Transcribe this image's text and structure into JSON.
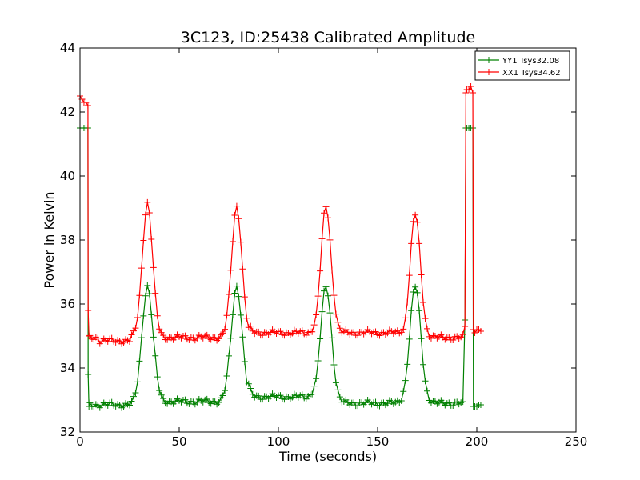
{
  "chart_data": {
    "type": "line",
    "title": "3C123, ID:25438 Calibrated Amplitude",
    "xlabel": "Time (seconds)",
    "ylabel": "Power in Kelvin",
    "xlim": [
      0,
      250
    ],
    "ylim": [
      32,
      44
    ],
    "xticks": [
      "0",
      "50",
      "100",
      "150",
      "200",
      "250"
    ],
    "yticks": [
      "32",
      "34",
      "36",
      "38",
      "40",
      "42",
      "44"
    ],
    "legend_position": "top-right",
    "grid": false,
    "marker": "+",
    "series": [
      {
        "name": "YY1 Tsys32.08",
        "color": "#008000",
        "segments": [
          {
            "x": [
              0,
              1,
              2,
              3,
              4
            ],
            "y": [
              41.5,
              41.5,
              41.5,
              41.5,
              41.5
            ]
          },
          {
            "x": [
              4.1,
              4.5
            ],
            "y": [
              33.8,
              32.8
            ]
          },
          {
            "baseline": 32.85,
            "x_start": 5,
            "x_end": 193,
            "step": 1,
            "peaks": [
              {
                "center": 34,
                "height": 3.7,
                "sigma": 2.8
              },
              {
                "center": 79,
                "height": 3.7,
                "sigma": 2.8
              },
              {
                "center": 124,
                "height": 3.7,
                "sigma": 2.8
              },
              {
                "center": 169,
                "height": 3.7,
                "sigma": 2.8
              }
            ],
            "plateaus": [
              {
                "from": 38,
                "to": 75,
                "value": 32.95
              },
              {
                "from": 85,
                "to": 118,
                "value": 33.1
              },
              {
                "from": 130,
                "to": 163,
                "value": 32.9
              },
              {
                "from": 175,
                "to": 192,
                "value": 32.9
              }
            ]
          },
          {
            "x": [
              194,
              194.5,
              195,
              196,
              197,
              198
            ],
            "y": [
              35.5,
              41.5,
              41.5,
              41.5,
              41.5,
              41.5
            ]
          },
          {
            "x": [
              198.3,
              199,
              200,
              201,
              202
            ],
            "y": [
              32.8,
              32.8,
              32.8,
              32.85,
              32.85
            ]
          }
        ]
      },
      {
        "name": "XX1 Tsys34.62",
        "color": "#ff0000",
        "segments": [
          {
            "x": [
              0,
              1,
              2,
              3,
              4
            ],
            "y": [
              42.5,
              42.4,
              42.3,
              42.3,
              42.2
            ]
          },
          {
            "x": [
              4.1,
              4.5
            ],
            "y": [
              35.8,
              35.0
            ]
          },
          {
            "baseline": 34.95,
            "x_start": 5,
            "x_end": 193,
            "step": 1,
            "peaks": [
              {
                "center": 34,
                "height": 4.2,
                "sigma": 2.6
              },
              {
                "center": 79,
                "height": 4.1,
                "sigma": 2.6
              },
              {
                "center": 124,
                "height": 4.1,
                "sigma": 2.6
              },
              {
                "center": 169,
                "height": 3.85,
                "sigma": 2.6
              }
            ],
            "plateaus": [
              {
                "from": 10,
                "to": 25,
                "value": 34.85
              },
              {
                "from": 40,
                "to": 72,
                "value": 34.95
              },
              {
                "from": 86,
                "to": 118,
                "value": 35.1
              },
              {
                "from": 128,
                "to": 162,
                "value": 35.1
              },
              {
                "from": 176,
                "to": 192,
                "value": 34.95
              }
            ]
          },
          {
            "x": [
              194,
              194.5,
              195,
              196,
              197,
              198
            ],
            "y": [
              35.3,
              42.6,
              42.7,
              42.7,
              42.8,
              42.6
            ]
          },
          {
            "x": [
              198.3,
              199,
              200,
              201,
              202
            ],
            "y": [
              35.2,
              35.1,
              35.2,
              35.2,
              35.15
            ]
          }
        ]
      }
    ]
  }
}
